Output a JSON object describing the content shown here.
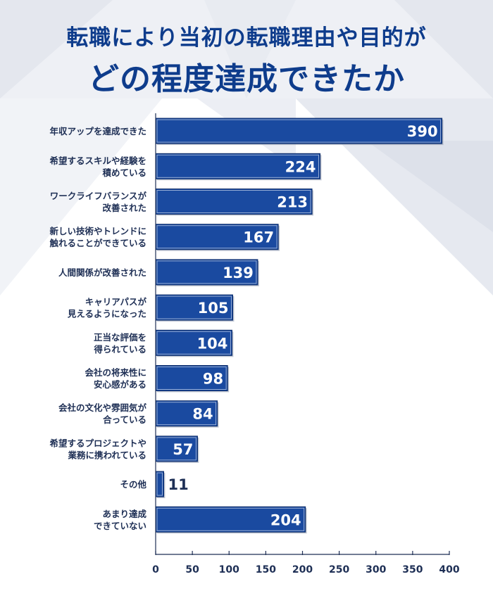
{
  "header": {
    "title_line1": "転職により当初の転職理由や目的が",
    "title_line2": "どの程度達成できたか"
  },
  "colors": {
    "bar": "#1a4aa0",
    "bar_edge": "#0a2a66",
    "title": "#0e3c8c",
    "label": "#1e2f55",
    "axis": "#1e2f55"
  },
  "chart_data": {
    "type": "bar",
    "orientation": "horizontal",
    "title": "転職により当初の転職理由や目的がどの程度達成できたか",
    "xlabel": "",
    "ylabel": "",
    "xlim": [
      0,
      400
    ],
    "xticks": [
      0,
      50,
      100,
      150,
      200,
      250,
      300,
      350,
      400
    ],
    "grid": false,
    "categories": [
      [
        "年収アップを達成できた"
      ],
      [
        "希望するスキルや経験を",
        "積めている"
      ],
      [
        "ワークライフバランスが",
        "改善された"
      ],
      [
        "新しい技術やトレンドに",
        "触れることができている"
      ],
      [
        "人間関係が改善された"
      ],
      [
        "キャリアパスが",
        "見えるようになった"
      ],
      [
        "正当な評価を",
        "得られている"
      ],
      [
        "会社の将来性に",
        "安心感がある"
      ],
      [
        "会社の文化や雰囲気が",
        "合っている"
      ],
      [
        "希望するプロジェクトや",
        "業務に携われている"
      ],
      [
        "その他"
      ],
      [
        "あまり達成",
        "できていない"
      ]
    ],
    "values": [
      390,
      224,
      213,
      167,
      139,
      105,
      104,
      98,
      84,
      57,
      11,
      204
    ]
  }
}
